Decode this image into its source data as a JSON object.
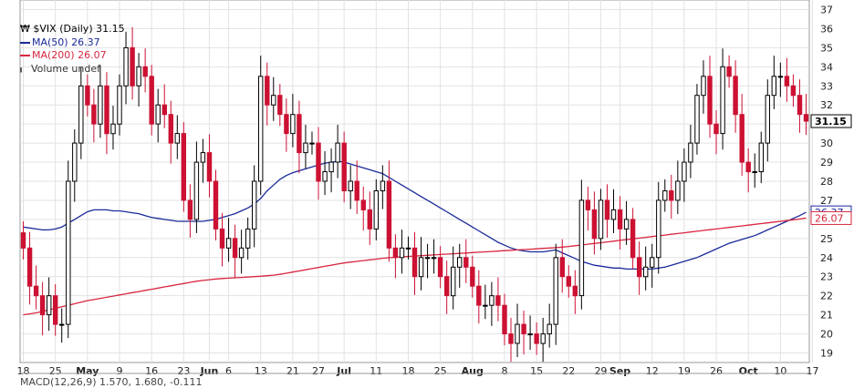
{
  "chart_data": {
    "type": "candlestick",
    "title": "$VIX (Daily) 31.15",
    "last_value": "31.15",
    "ylim": [
      18.5,
      37.5
    ],
    "y_ticks": [
      19,
      20,
      21,
      22,
      23,
      24,
      25,
      26,
      27,
      28,
      29,
      30,
      31,
      32,
      33,
      34,
      35,
      36,
      37
    ],
    "x_tick_labels": [
      "18",
      "25",
      "May",
      "9",
      "16",
      "23",
      "Jun",
      "6",
      "13",
      "21",
      "27",
      "Jul",
      "11",
      "18",
      "25",
      "Aug",
      "8",
      "15",
      "22",
      "29",
      "Sep",
      "12",
      "19",
      "26",
      "Oct",
      "10",
      "17"
    ],
    "x_tick_label_indices": [
      0,
      5,
      10,
      15,
      20,
      25,
      29,
      32,
      37,
      42,
      46,
      50,
      55,
      60,
      65,
      70,
      75,
      80,
      85,
      90,
      93,
      98,
      103,
      108,
      113,
      118,
      123
    ],
    "legend": [
      {
        "label": "$VIX (Daily) 31.15",
        "color": "#000000"
      },
      {
        "label": "MA(50) 26.37",
        "color": "#1a2a99"
      },
      {
        "label": "MA(200) 26.07",
        "color": "#d8263f"
      },
      {
        "label": "Volume undef",
        "color": "#555555"
      }
    ],
    "value_tags": [
      {
        "label": "31.15",
        "value": 31.15,
        "color": "#000000"
      },
      {
        "label": "26.37",
        "value": 26.37,
        "color": "#1a2a99"
      },
      {
        "label": "26.07",
        "value": 26.07,
        "color": "#d8263f"
      }
    ],
    "ohlc_series": {
      "name": "$VIX",
      "closes": [
        24.5,
        22.5,
        22.0,
        21.0,
        22.0,
        20.5,
        20.5,
        28.0,
        30.0,
        33.0,
        32.0,
        31.0,
        33.0,
        30.5,
        31.0,
        33.0,
        35.0,
        33.0,
        34.0,
        33.5,
        31.0,
        32.0,
        31.5,
        30.0,
        30.5,
        27.0,
        26.0,
        29.0,
        29.5,
        28.0,
        25.5,
        24.5,
        25.0,
        24.0,
        24.5,
        25.5,
        28.0,
        33.5,
        32.0,
        32.5,
        31.5,
        30.5,
        31.5,
        29.5,
        30.0,
        30.0,
        28.0,
        28.5,
        29.0,
        30.0,
        27.5,
        28.0,
        27.0,
        26.5,
        25.5,
        27.5,
        28.0,
        24.5,
        24.0,
        24.5,
        24.5,
        23.0,
        24.0,
        24.0,
        24.0,
        23.0,
        22.0,
        23.5,
        24.0,
        23.5,
        22.5,
        21.5,
        21.5,
        22.0,
        21.5,
        20.0,
        19.5,
        20.5,
        20.0,
        20.0,
        19.5,
        20.0,
        20.5,
        24.0,
        23.0,
        22.5,
        22.0,
        27.0,
        26.5,
        25.0,
        27.0,
        26.0,
        26.5,
        25.5,
        26.0,
        24.0,
        23.0,
        23.5,
        24.0,
        27.0,
        27.5,
        27.0,
        28.0,
        29.0,
        30.0,
        32.5,
        33.5,
        31.0,
        30.5,
        34.0,
        33.5,
        31.5,
        29.0,
        28.5,
        28.5,
        30.0,
        32.5,
        33.5,
        33.5,
        33.0,
        32.5,
        31.5,
        31.15
      ]
    },
    "series": [
      {
        "name": "MA(50)",
        "color": "#1a2a99",
        "values": [
          25.6,
          25.55,
          25.5,
          25.45,
          25.45,
          25.5,
          25.6,
          25.8,
          26.0,
          26.2,
          26.4,
          26.5,
          26.5,
          26.5,
          26.45,
          26.45,
          26.4,
          26.35,
          26.3,
          26.2,
          26.1,
          26.05,
          26.0,
          25.95,
          25.9,
          25.9,
          25.9,
          25.9,
          25.9,
          25.95,
          26.0,
          26.1,
          26.2,
          26.3,
          26.45,
          26.6,
          26.8,
          27.1,
          27.5,
          27.8,
          28.1,
          28.3,
          28.45,
          28.55,
          28.65,
          28.75,
          28.85,
          28.95,
          29.0,
          29.05,
          29.0,
          28.9,
          28.8,
          28.7,
          28.6,
          28.5,
          28.4,
          28.2,
          28.0,
          27.8,
          27.6,
          27.4,
          27.2,
          27.0,
          26.8,
          26.6,
          26.4,
          26.2,
          26.0,
          25.8,
          25.6,
          25.4,
          25.2,
          25.0,
          24.8,
          24.65,
          24.5,
          24.4,
          24.35,
          24.3,
          24.3,
          24.3,
          24.35,
          24.4,
          24.25,
          24.1,
          23.95,
          23.8,
          23.7,
          23.6,
          23.55,
          23.5,
          23.45,
          23.45,
          23.4,
          23.4,
          23.4,
          23.4,
          23.4,
          23.45,
          23.5,
          23.6,
          23.7,
          23.8,
          23.9,
          24.0,
          24.15,
          24.3,
          24.45,
          24.6,
          24.75,
          24.85,
          24.95,
          25.05,
          25.15,
          25.3,
          25.45,
          25.6,
          25.75,
          25.9,
          26.05,
          26.2,
          26.37
        ]
      },
      {
        "name": "MA(200)",
        "color": "#d8263f",
        "values": [
          21.0,
          21.05,
          21.1,
          21.18,
          21.26,
          21.34,
          21.42,
          21.5,
          21.58,
          21.66,
          21.74,
          21.8,
          21.86,
          21.92,
          21.98,
          22.04,
          22.1,
          22.16,
          22.22,
          22.28,
          22.34,
          22.4,
          22.46,
          22.52,
          22.58,
          22.64,
          22.7,
          22.76,
          22.8,
          22.84,
          22.88,
          22.9,
          22.92,
          22.94,
          22.96,
          22.98,
          23.0,
          23.02,
          23.05,
          23.08,
          23.12,
          23.18,
          23.24,
          23.3,
          23.36,
          23.42,
          23.48,
          23.54,
          23.6,
          23.66,
          23.72,
          23.76,
          23.8,
          23.84,
          23.88,
          23.92,
          23.96,
          23.99,
          24.02,
          24.04,
          24.06,
          24.08,
          24.1,
          24.12,
          24.14,
          24.16,
          24.18,
          24.2,
          24.22,
          24.24,
          24.26,
          24.28,
          24.3,
          24.32,
          24.34,
          24.36,
          24.38,
          24.4,
          24.42,
          24.44,
          24.46,
          24.48,
          24.5,
          24.52,
          24.55,
          24.58,
          24.62,
          24.66,
          24.7,
          24.74,
          24.78,
          24.82,
          24.86,
          24.9,
          24.94,
          24.98,
          25.02,
          25.06,
          25.1,
          25.14,
          25.18,
          25.22,
          25.26,
          25.3,
          25.34,
          25.38,
          25.42,
          25.46,
          25.5,
          25.54,
          25.58,
          25.62,
          25.66,
          25.7,
          25.74,
          25.78,
          25.82,
          25.86,
          25.9,
          25.94,
          25.98,
          26.02,
          26.07
        ]
      }
    ],
    "grid": true,
    "legend_position": "top-left",
    "up_color": "#ffffff",
    "down_color": "#cc1133",
    "bottom_label": "MACD(12,26,9) 1.570, 1.680, -0.111"
  }
}
